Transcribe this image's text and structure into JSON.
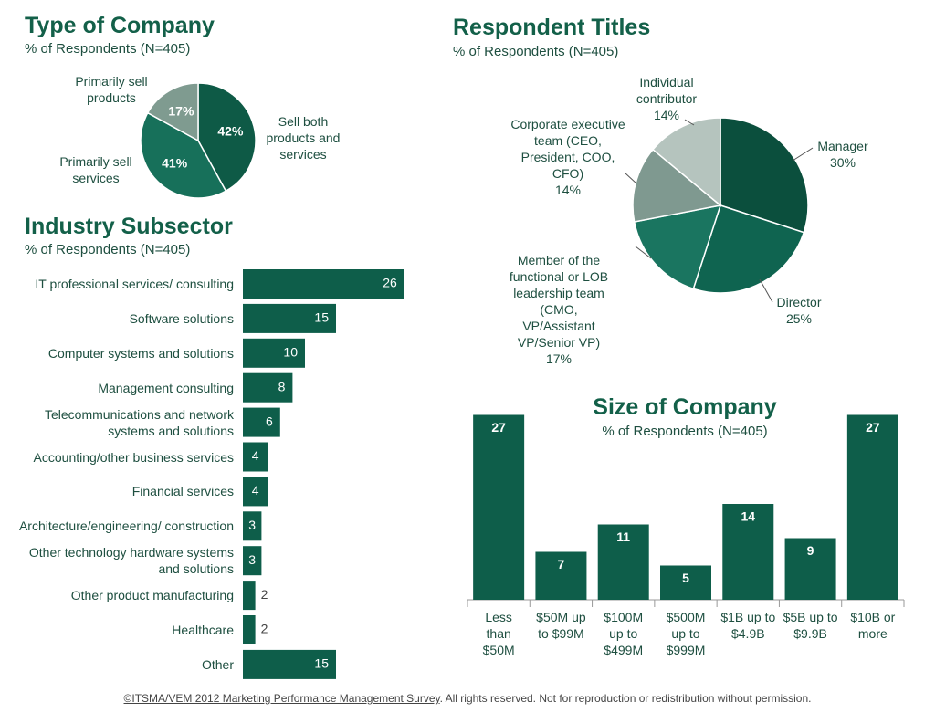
{
  "chart_data": [
    {
      "type": "pie",
      "title": "Type of Company",
      "subtitle": "% of Respondents (N=405)",
      "categories": [
        "Sell both products and services",
        "Primarily sell services",
        "Primarily sell products"
      ],
      "values": [
        42,
        41,
        17
      ],
      "value_labels": [
        "42%",
        "41%",
        "17%"
      ],
      "colors": [
        "#0e5a46",
        "#17705a",
        "#7f9b90"
      ]
    },
    {
      "type": "pie",
      "title": "Respondent Titles",
      "subtitle": "% of Respondents (N=405)",
      "categories": [
        "Manager",
        "Director",
        "Member of the functional or LOB leadership team (CMO, VP/Assistant VP/Senior VP)",
        "Corporate executive team (CEO, President, COO, CFO)",
        "Individual contributor"
      ],
      "values": [
        30,
        25,
        17,
        14,
        14
      ],
      "value_labels": [
        "30%",
        "25%",
        "17%",
        "14%",
        "14%"
      ],
      "colors": [
        "#0b4f3d",
        "#0f6450",
        "#1a7560",
        "#7f9990",
        "#b5c4be"
      ]
    },
    {
      "type": "barh",
      "title": "Industry Subsector",
      "subtitle": "% of Respondents (N=405)",
      "categories": [
        "IT professional services/ consulting",
        "Software solutions",
        "Computer systems and solutions",
        "Management consulting",
        "Telecommunications and network systems and solutions",
        "Accounting/other business services",
        "Financial services",
        "Architecture/engineering/ construction",
        "Other technology hardware systems and solutions",
        "Other product manufacturing",
        "Healthcare",
        "Other"
      ],
      "values": [
        26,
        15,
        10,
        8,
        6,
        4,
        4,
        3,
        3,
        2,
        2,
        15
      ],
      "color": "#0e5e4a"
    },
    {
      "type": "bar",
      "title": "Size of Company",
      "subtitle": "% of Respondents (N=405)",
      "categories": [
        "Less than $50M",
        "$50M up to $99M",
        "$100M up to $499M",
        "$500M up to $999M",
        "$1B up to $4.9B",
        "$5B up to $9.9B",
        "$10B or more"
      ],
      "values": [
        27,
        7,
        11,
        5,
        14,
        9,
        27
      ],
      "color": "#0e5e4a"
    }
  ],
  "footer": {
    "source": "©ITSMA/VEM 2012 Marketing Performance Management Survey",
    "note": ". All rights reserved. Not for reproduction or redistribution without permission."
  }
}
